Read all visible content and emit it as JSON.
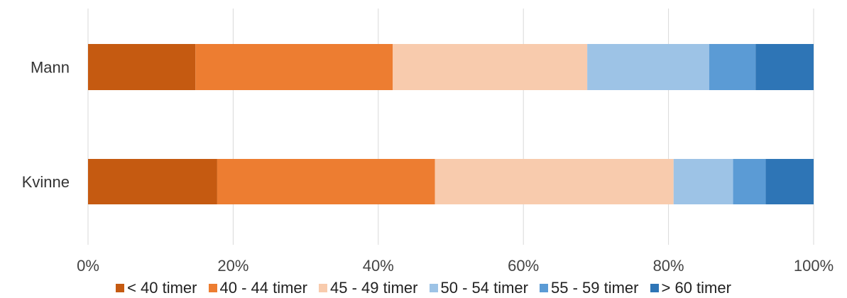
{
  "chart_data": {
    "type": "bar",
    "orientation": "horizontal",
    "stacked": true,
    "categories": [
      "Mann",
      "Kvinne"
    ],
    "series": [
      {
        "name": "< 40 timer",
        "color": "#C55A11",
        "values": [
          14.8,
          17.8
        ]
      },
      {
        "name": "40 - 44 timer",
        "color": "#ED7D31",
        "values": [
          27.2,
          30.0
        ]
      },
      {
        "name": "45 - 49 timer",
        "color": "#F8CBAD",
        "values": [
          26.8,
          32.9
        ]
      },
      {
        "name": "50 - 54 timer",
        "color": "#9DC3E6",
        "values": [
          16.8,
          8.2
        ]
      },
      {
        "name": "55 - 59 timer",
        "color": "#5B9BD5",
        "values": [
          6.4,
          4.5
        ]
      },
      {
        "name": "> 60 timer",
        "color": "#2E75B6",
        "values": [
          8.0,
          6.6
        ]
      }
    ],
    "x_ticks": [
      "0%",
      "20%",
      "40%",
      "60%",
      "80%",
      "100%"
    ],
    "xlim": [
      0,
      100
    ],
    "grid": true,
    "legend_position": "bottom"
  }
}
